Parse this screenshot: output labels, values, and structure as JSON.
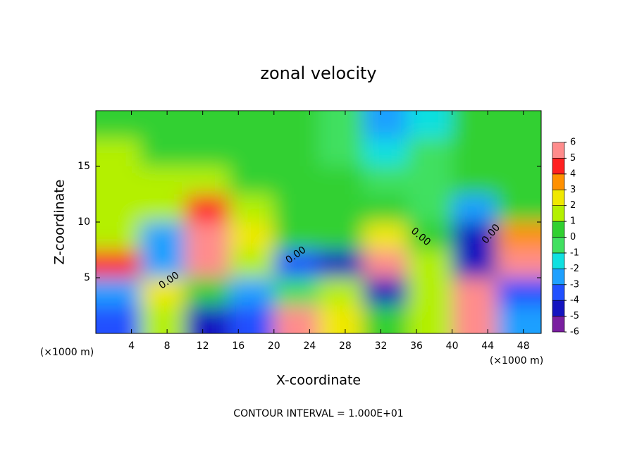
{
  "chart_data": {
    "type": "contour",
    "title": "zonal velocity",
    "x_label": "X-coordinate",
    "y_label": "Z-coordinate",
    "x_unit_label": "(×1000 m)",
    "y_unit_label": "(×1000 m)",
    "footer": "CONTOUR INTERVAL = 1.000E+01",
    "contour_labels": [
      "0.00",
      "0.00",
      "0.00",
      "0.00"
    ],
    "xlim": [
      0,
      50
    ],
    "xticks": [
      4,
      8,
      12,
      16,
      20,
      24,
      28,
      32,
      36,
      40,
      44,
      48
    ],
    "ylim": [
      0,
      20
    ],
    "yticks": [
      5,
      10,
      15
    ],
    "x": [
      2.5,
      7.5,
      12.5,
      17.5,
      22.5,
      27.5,
      32.5,
      37.5,
      42.5,
      47.5
    ],
    "y": [
      1.25,
      3.75,
      6.25,
      8.75,
      11.25,
      13.75,
      16.25,
      18.75
    ],
    "z": [
      [
        -4,
        1,
        -5,
        -4,
        5,
        2,
        0,
        1,
        5,
        -3
      ],
      [
        -3,
        2,
        0,
        -3,
        -1,
        1,
        -5,
        1,
        5,
        -4
      ],
      [
        4,
        -3,
        5,
        1,
        -4,
        -5,
        6,
        1,
        -5,
        5
      ],
      [
        1,
        -3,
        5,
        2,
        0,
        0,
        2,
        0,
        -5,
        3
      ],
      [
        1,
        1,
        4,
        1,
        0,
        0,
        0,
        -1,
        -3,
        0
      ],
      [
        1,
        1,
        1,
        0,
        0,
        0,
        -1,
        -1,
        0,
        0
      ],
      [
        1,
        0,
        0,
        0,
        0,
        -1,
        -2,
        -1,
        0,
        0
      ],
      [
        0,
        0,
        0,
        0,
        0,
        -1,
        -3,
        -2,
        0,
        0
      ]
    ],
    "colorbar_ticks": [
      -6,
      -5,
      -4,
      -3,
      -2,
      -1,
      0,
      1,
      2,
      3,
      4,
      5,
      6
    ],
    "colors": [
      "#7a1fa0",
      "#1414c0",
      "#2050ff",
      "#1ea0ff",
      "#10e0e0",
      "#40e060",
      "#30d030",
      "#b4f000",
      "#f0e800",
      "#ff9000",
      "#ff2020",
      "#ff8c8c"
    ]
  }
}
